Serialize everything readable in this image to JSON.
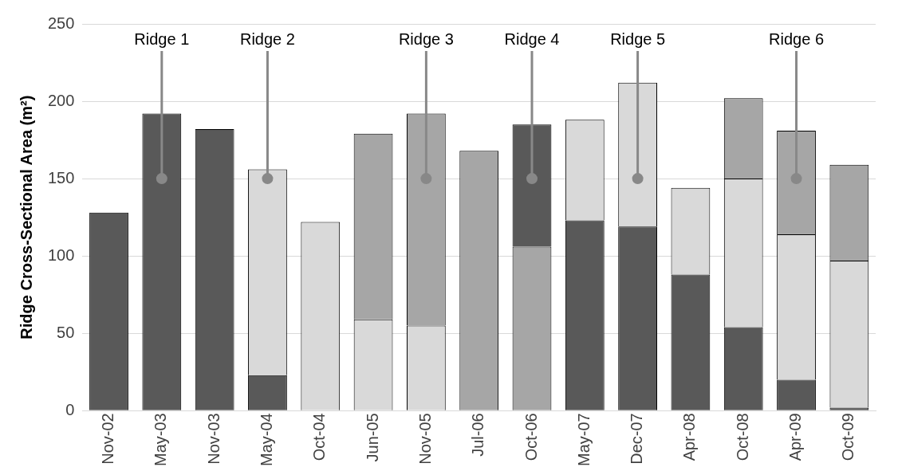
{
  "chart_data": {
    "type": "bar",
    "stacked": true,
    "ylabel": "Ridge Cross-Sectional Area (m²)",
    "categories": [
      "Nov-02",
      "May-03",
      "Nov-03",
      "May-04",
      "Oct-04",
      "Jun-05",
      "Nov-05",
      "Jul-06",
      "Oct-06",
      "May-07",
      "Dec-07",
      "Apr-08",
      "Oct-08",
      "Apr-09",
      "Oct-09"
    ],
    "series": [
      {
        "color": "#595959",
        "values": [
          128,
          192,
          182,
          23,
          null,
          null,
          null,
          null,
          null,
          123,
          119,
          88,
          54,
          20,
          2
        ]
      },
      {
        "color": "#d9d9d9",
        "values": [
          null,
          null,
          null,
          133,
          122,
          59,
          55,
          null,
          null,
          65,
          93,
          56,
          96,
          94,
          95
        ]
      },
      {
        "color": "#a6a6a6",
        "values": [
          null,
          null,
          null,
          null,
          null,
          120,
          137,
          168,
          106,
          null,
          null,
          null,
          52,
          67,
          62
        ]
      },
      {
        "color": "#595959",
        "values": [
          null,
          null,
          null,
          null,
          null,
          null,
          null,
          null,
          79,
          null,
          null,
          null,
          null,
          null,
          null
        ]
      }
    ],
    "ylim": [
      0,
      250
    ],
    "yticks": [
      0,
      50,
      100,
      150,
      200,
      250
    ],
    "grid": "y",
    "legend": false,
    "annotations": [
      {
        "text": "Ridge 1",
        "x": "May-03",
        "y": 150
      },
      {
        "text": "Ridge 2",
        "x": "May-04",
        "y": 150
      },
      {
        "text": "Ridge 3",
        "x": "Nov-05",
        "y": 150
      },
      {
        "text": "Ridge 4",
        "x": "Oct-06",
        "y": 150
      },
      {
        "text": "Ridge 5",
        "x": "Dec-07",
        "y": 150
      },
      {
        "text": "Ridge 6",
        "x": "Apr-09",
        "y": 150
      }
    ]
  }
}
